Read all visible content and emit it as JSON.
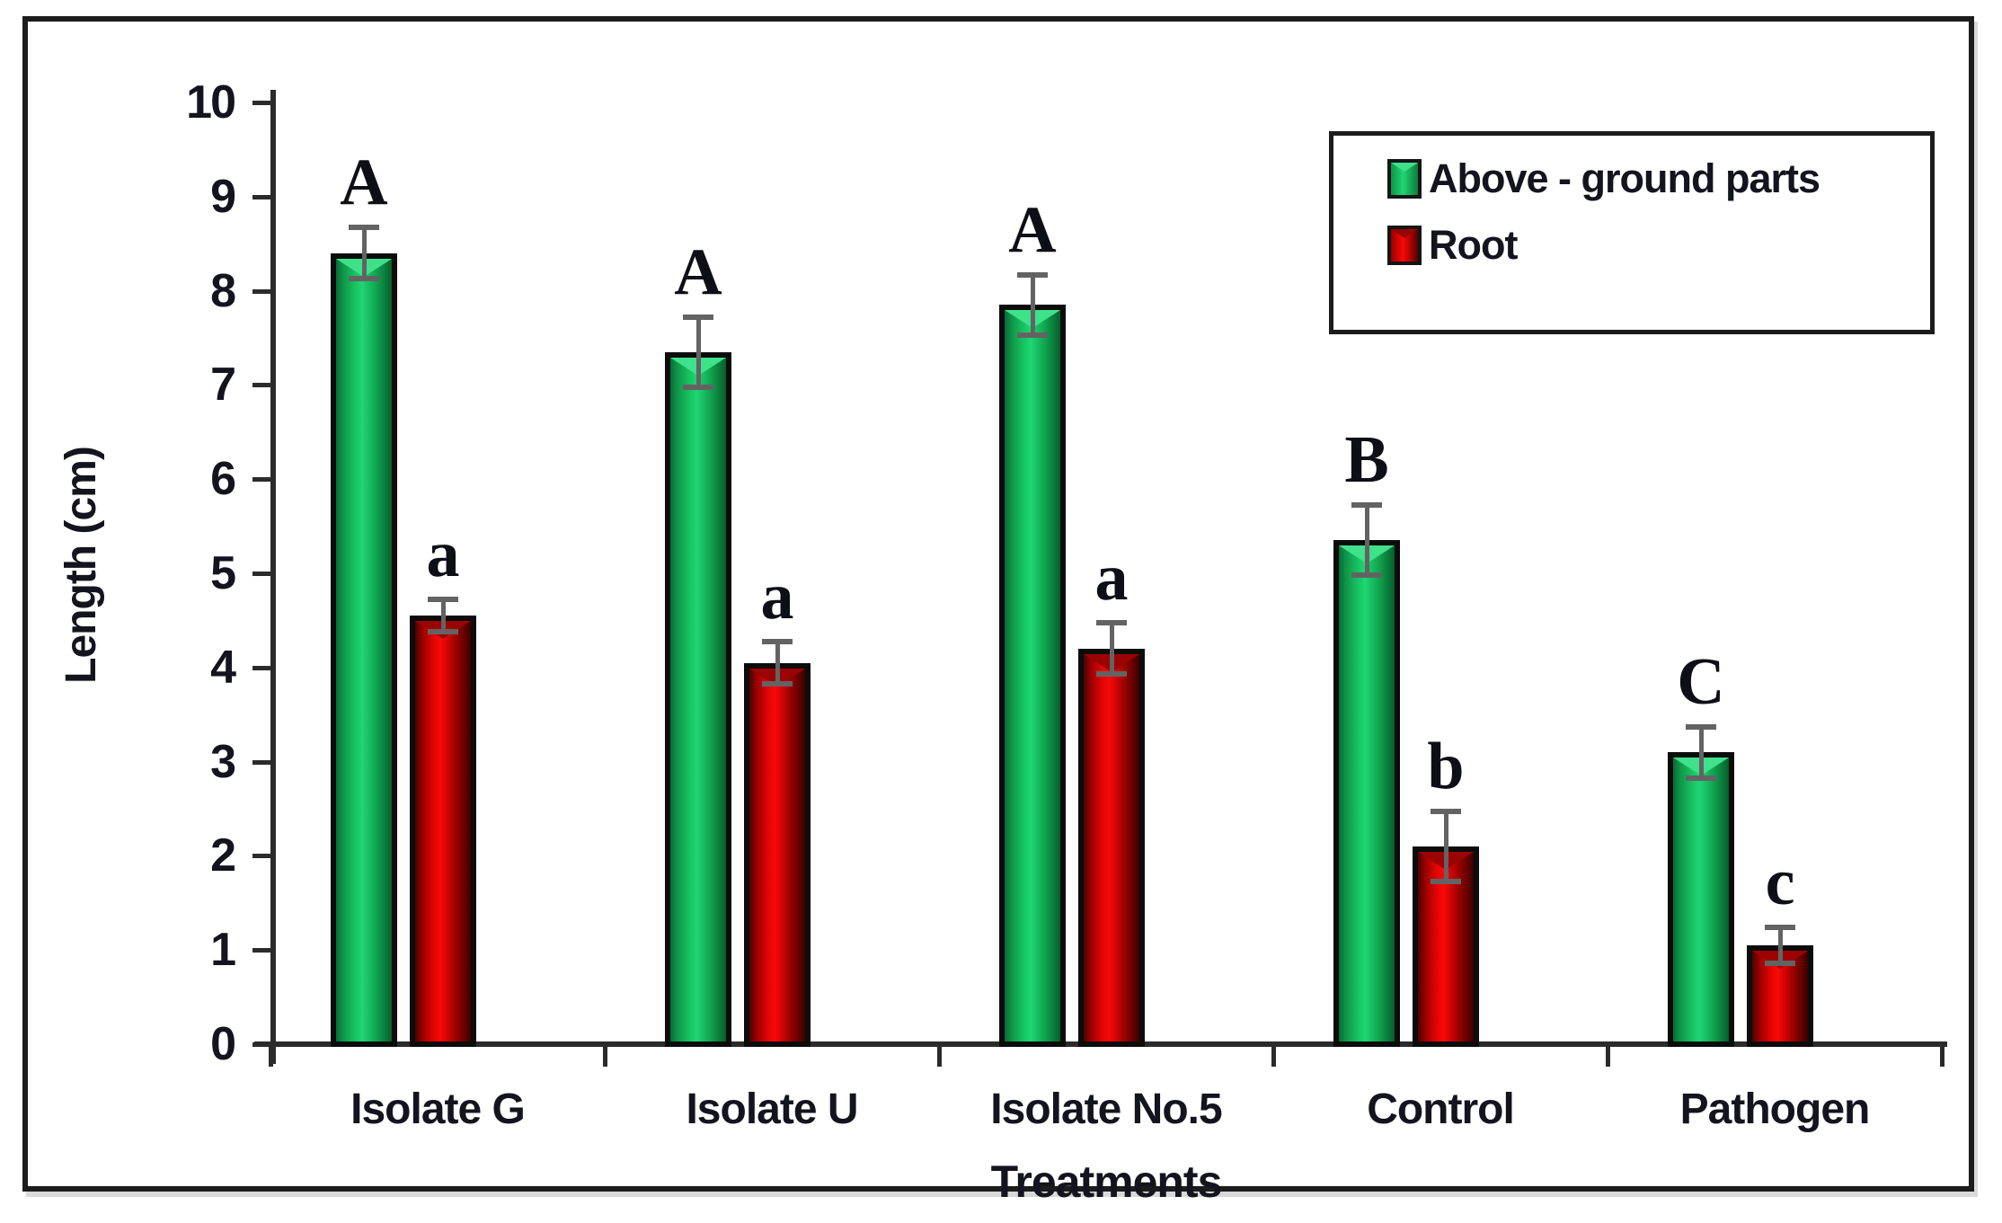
{
  "figure": {
    "background": "#ffffff",
    "frame_border_color": "#1c1c1c"
  },
  "chart_data": {
    "type": "bar",
    "title": "",
    "xlabel": "Treatments",
    "ylabel": "Length (cm)",
    "ylim": [
      0,
      10
    ],
    "yticks": [
      0,
      1,
      2,
      3,
      4,
      5,
      6,
      7,
      8,
      9,
      10
    ],
    "categories": [
      "Isolate G",
      "Isolate U",
      "Isolate No.5",
      "Control",
      "Pathogen"
    ],
    "series": [
      {
        "name": "Above - ground parts",
        "color": "#16bf5f",
        "values": [
          8.4,
          7.35,
          7.85,
          5.35,
          3.1
        ],
        "errors": [
          0.3,
          0.4,
          0.35,
          0.4,
          0.3
        ],
        "sig_letters": [
          "A",
          "A",
          "A",
          "B",
          "C"
        ]
      },
      {
        "name": "Root",
        "color": "#e80404",
        "values": [
          4.55,
          4.05,
          4.2,
          2.1,
          1.05
        ],
        "errors": [
          0.2,
          0.25,
          0.3,
          0.4,
          0.22
        ],
        "sig_letters": [
          "a",
          "a",
          "a",
          "b",
          "c"
        ]
      }
    ],
    "legend_position": "top-right",
    "grid": false,
    "error_bars": true,
    "error_bar_color": "#636363",
    "axis_color": "#2b2b2b",
    "text_color": "#14141e"
  }
}
